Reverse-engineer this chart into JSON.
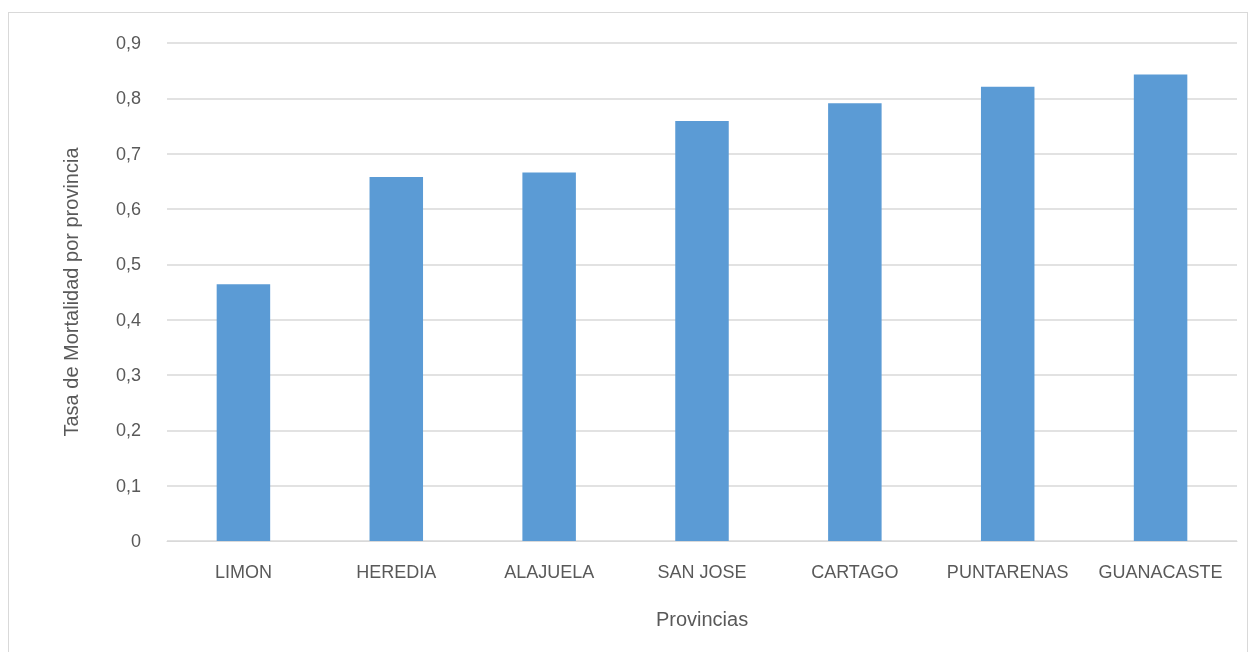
{
  "chart_data": {
    "type": "bar",
    "xlabel": "Provincias",
    "ylabel": "Tasa de Mortalidad por provincia",
    "categories": [
      "LIMON",
      "HEREDIA",
      "ALAJUELA",
      "SAN JOSE",
      "CARTAGO",
      "PUNTARENAS",
      "GUANACASTE"
    ],
    "values": [
      0.464,
      0.658,
      0.666,
      0.759,
      0.791,
      0.821,
      0.843
    ],
    "color": "#5b9bd5",
    "ylim": [
      0,
      0.9
    ],
    "yticks": [
      0,
      {
        "value": 0.1,
        "label": "0,1"
      },
      {
        "value": 0.2,
        "label": "0,2"
      },
      {
        "value": 0.3,
        "label": "0,3"
      },
      {
        "value": 0.4,
        "label": "0,4"
      },
      {
        "value": 0.5,
        "label": "0,5"
      },
      {
        "value": 0.6,
        "label": "0,6"
      },
      {
        "value": 0.7,
        "label": "0,7"
      },
      {
        "value": 0.8,
        "label": "0,8"
      },
      {
        "value": 0.9,
        "label": "0,9"
      }
    ],
    "grid": "y"
  }
}
